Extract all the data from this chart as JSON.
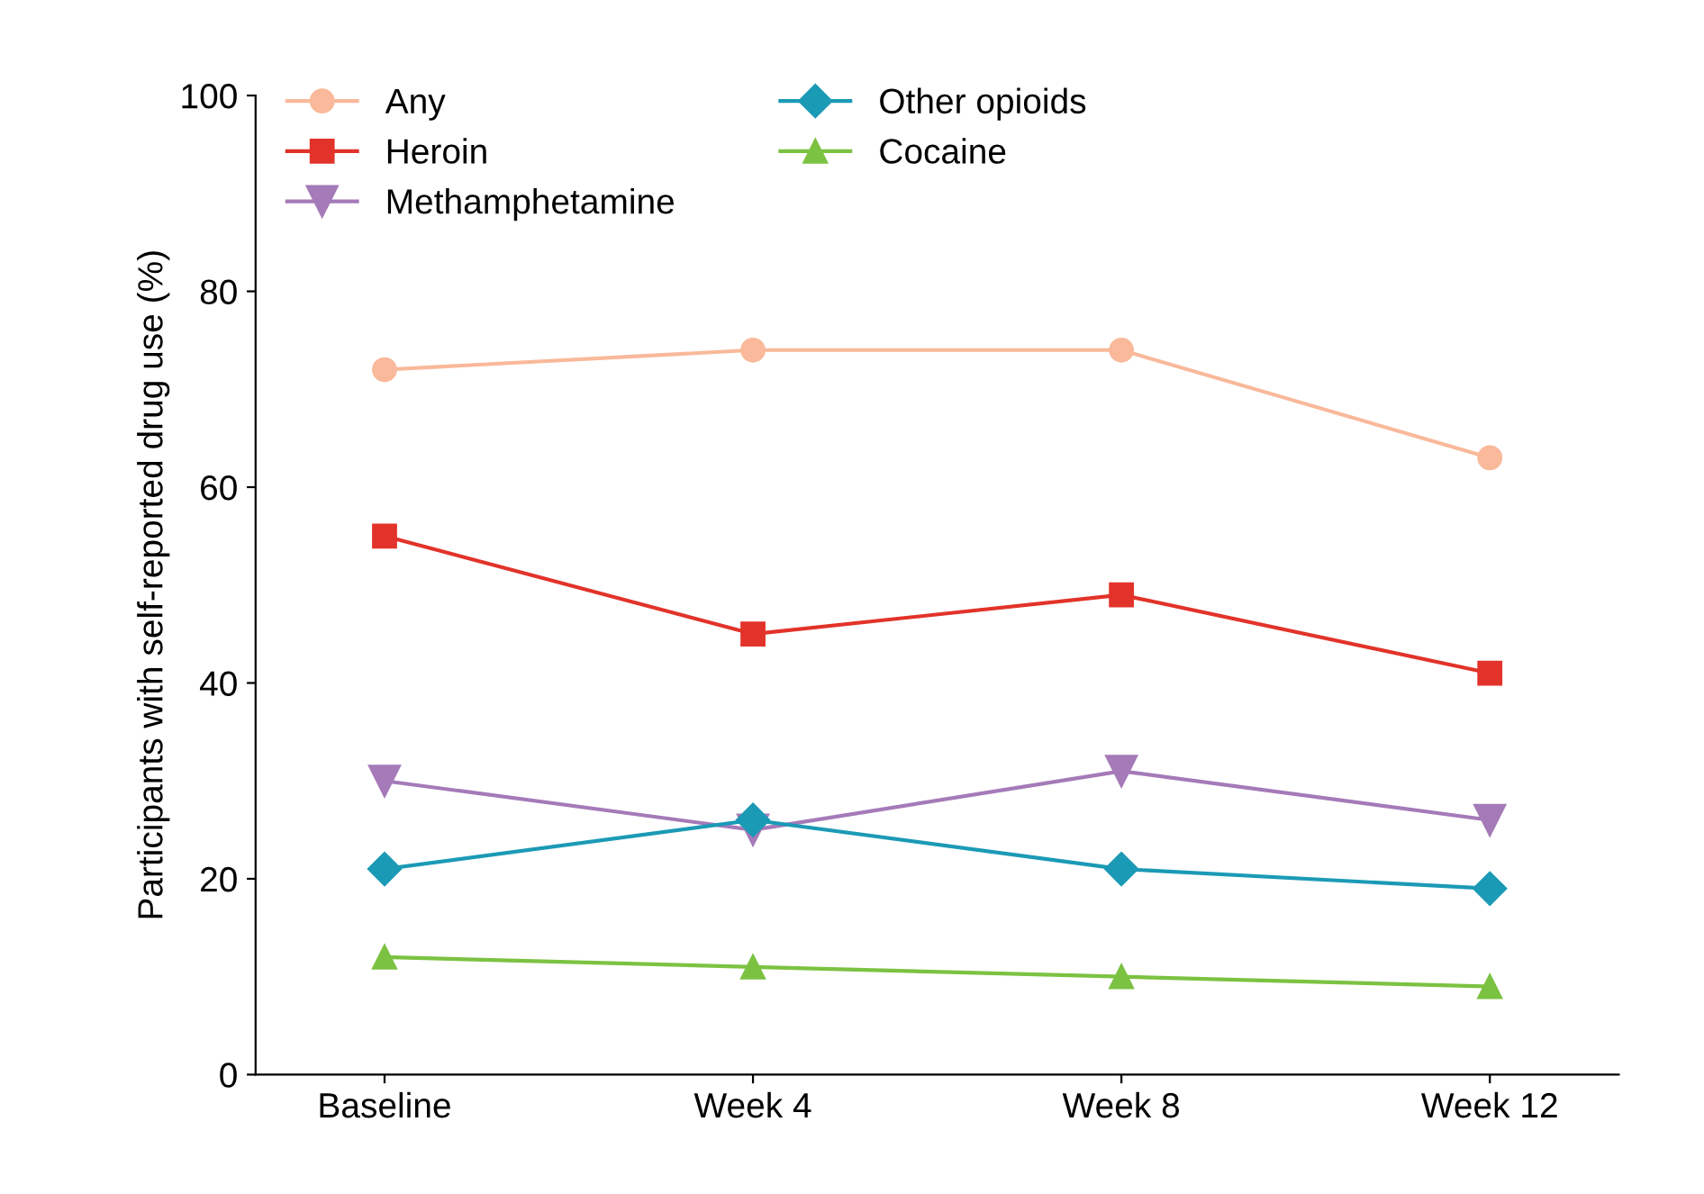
{
  "chart_data": {
    "type": "line",
    "ylabel": "Participants with self-reported drug use (%)",
    "categories": [
      "Baseline",
      "Week 4",
      "Week 8",
      "Week 12"
    ],
    "series": [
      {
        "name": "Any",
        "color": "#f9b99a",
        "marker": "circle",
        "values": [
          72,
          74,
          74,
          63
        ]
      },
      {
        "name": "Heroin",
        "color": "#e2332a",
        "marker": "square",
        "values": [
          55,
          45,
          49,
          41
        ]
      },
      {
        "name": "Methamphetamine",
        "color": "#a57ab8",
        "marker": "triangle-down",
        "values": [
          30,
          25,
          31,
          26
        ]
      },
      {
        "name": "Other opioids",
        "color": "#1b9ab6",
        "marker": "diamond",
        "values": [
          21,
          26,
          21,
          19
        ]
      },
      {
        "name": "Cocaine",
        "color": "#7cc242",
        "marker": "triangle",
        "values": [
          12,
          11,
          10,
          9
        ]
      }
    ],
    "ylim": [
      0,
      100
    ],
    "yticks": [
      0,
      20,
      40,
      60,
      80,
      100
    ],
    "grid": false,
    "legend": "top left",
    "line_style": "solid"
  }
}
